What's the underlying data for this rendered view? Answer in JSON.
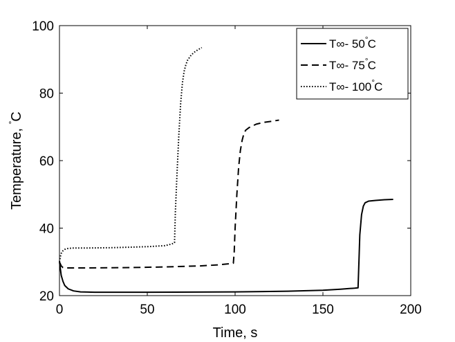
{
  "chart_data": {
    "type": "line",
    "xlabel": "Time, s",
    "ylabel_text": "Temperature, ",
    "ylabel_unit": "C",
    "degree_symbol": "°",
    "xlim": [
      0,
      200
    ],
    "ylim": [
      20,
      100
    ],
    "xticks": [
      0,
      50,
      100,
      150,
      200
    ],
    "yticks": [
      20,
      40,
      60,
      80,
      100
    ],
    "grid": false,
    "legend_position": "top-right",
    "series": [
      {
        "legend_prefix": "T∞- 50",
        "legend_unit": "C",
        "line_style": "solid",
        "color": "#000000",
        "x": [
          0,
          1,
          2,
          3,
          5,
          8,
          12,
          20,
          50,
          100,
          130,
          150,
          160,
          165,
          168,
          170,
          170.5,
          171,
          172,
          173,
          174,
          176,
          180,
          185,
          190
        ],
        "y": [
          30,
          26,
          24.2,
          23,
          22,
          21.4,
          21.1,
          21.0,
          21.0,
          21.1,
          21.3,
          21.6,
          21.9,
          22.1,
          22.2,
          22.3,
          30,
          38,
          44,
          46.5,
          47.5,
          48.0,
          48.2,
          48.4,
          48.5
        ]
      },
      {
        "legend_prefix": "T∞- 75",
        "legend_unit": "C",
        "line_style": "dashed",
        "color": "#000000",
        "x": [
          0,
          1,
          2,
          4,
          7,
          15,
          40,
          60,
          80,
          90,
          96,
          99,
          99.5,
          100,
          101,
          102,
          103,
          104,
          105,
          106,
          108,
          112,
          116,
          120,
          125
        ],
        "y": [
          30,
          28.8,
          28.3,
          28.2,
          28.2,
          28.2,
          28.3,
          28.5,
          28.8,
          29.1,
          29.4,
          29.6,
          33,
          40,
          50,
          58,
          63,
          66,
          68,
          69,
          69.8,
          70.8,
          71.3,
          71.6,
          72
        ]
      },
      {
        "legend_prefix": "T∞- 100",
        "legend_unit": "C",
        "line_style": "dotted",
        "color": "#000000",
        "x": [
          0,
          0.5,
          1,
          2,
          3,
          5,
          8,
          15,
          30,
          50,
          60,
          64,
          65.5,
          66,
          67,
          68,
          69,
          70,
          71,
          72,
          73,
          75,
          77,
          79,
          81
        ],
        "y": [
          30,
          31.5,
          32.5,
          33.3,
          33.7,
          34.0,
          34.1,
          34.1,
          34.2,
          34.5,
          34.8,
          35.3,
          35.7,
          45,
          57,
          68,
          77,
          83,
          86.5,
          88.5,
          89.8,
          91.3,
          92.2,
          92.9,
          93.5
        ]
      }
    ]
  }
}
